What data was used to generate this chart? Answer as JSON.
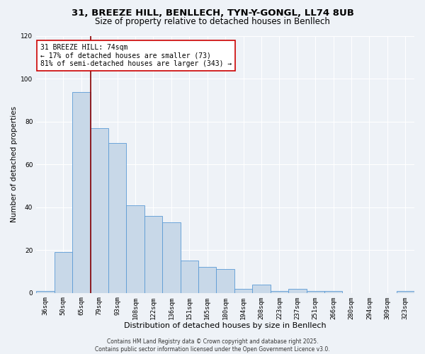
{
  "title1": "31, BREEZE HILL, BENLLECH, TYN-Y-GONGL, LL74 8UB",
  "title2": "Size of property relative to detached houses in Benllech",
  "xlabel": "Distribution of detached houses by size in Benllech",
  "ylabel": "Number of detached properties",
  "categories": [
    "36sqm",
    "50sqm",
    "65sqm",
    "79sqm",
    "93sqm",
    "108sqm",
    "122sqm",
    "136sqm",
    "151sqm",
    "165sqm",
    "180sqm",
    "194sqm",
    "208sqm",
    "223sqm",
    "237sqm",
    "251sqm",
    "266sqm",
    "280sqm",
    "294sqm",
    "309sqm",
    "323sqm"
  ],
  "values": [
    1,
    19,
    94,
    77,
    70,
    41,
    36,
    33,
    15,
    12,
    11,
    2,
    4,
    1,
    2,
    1,
    1,
    0,
    0,
    0,
    1
  ],
  "bar_color": "#c8d8e8",
  "bar_edge_color": "#5b9bd5",
  "vline_x": 2.5,
  "vline_color": "#8b0000",
  "annotation_text": "31 BREEZE HILL: 74sqm\n← 17% of detached houses are smaller (73)\n81% of semi-detached houses are larger (343) →",
  "annotation_box_color": "#ffffff",
  "annotation_box_edge": "#cc0000",
  "ylim": [
    0,
    120
  ],
  "yticks": [
    0,
    20,
    40,
    60,
    80,
    100,
    120
  ],
  "background_color": "#eef2f7",
  "grid_color": "#ffffff",
  "footer": "Contains HM Land Registry data © Crown copyright and database right 2025.\nContains public sector information licensed under the Open Government Licence v3.0.",
  "title1_fontsize": 9.5,
  "title2_fontsize": 8.5,
  "xlabel_fontsize": 8,
  "ylabel_fontsize": 7.5,
  "tick_fontsize": 6.5,
  "annotation_fontsize": 7,
  "footer_fontsize": 5.5
}
